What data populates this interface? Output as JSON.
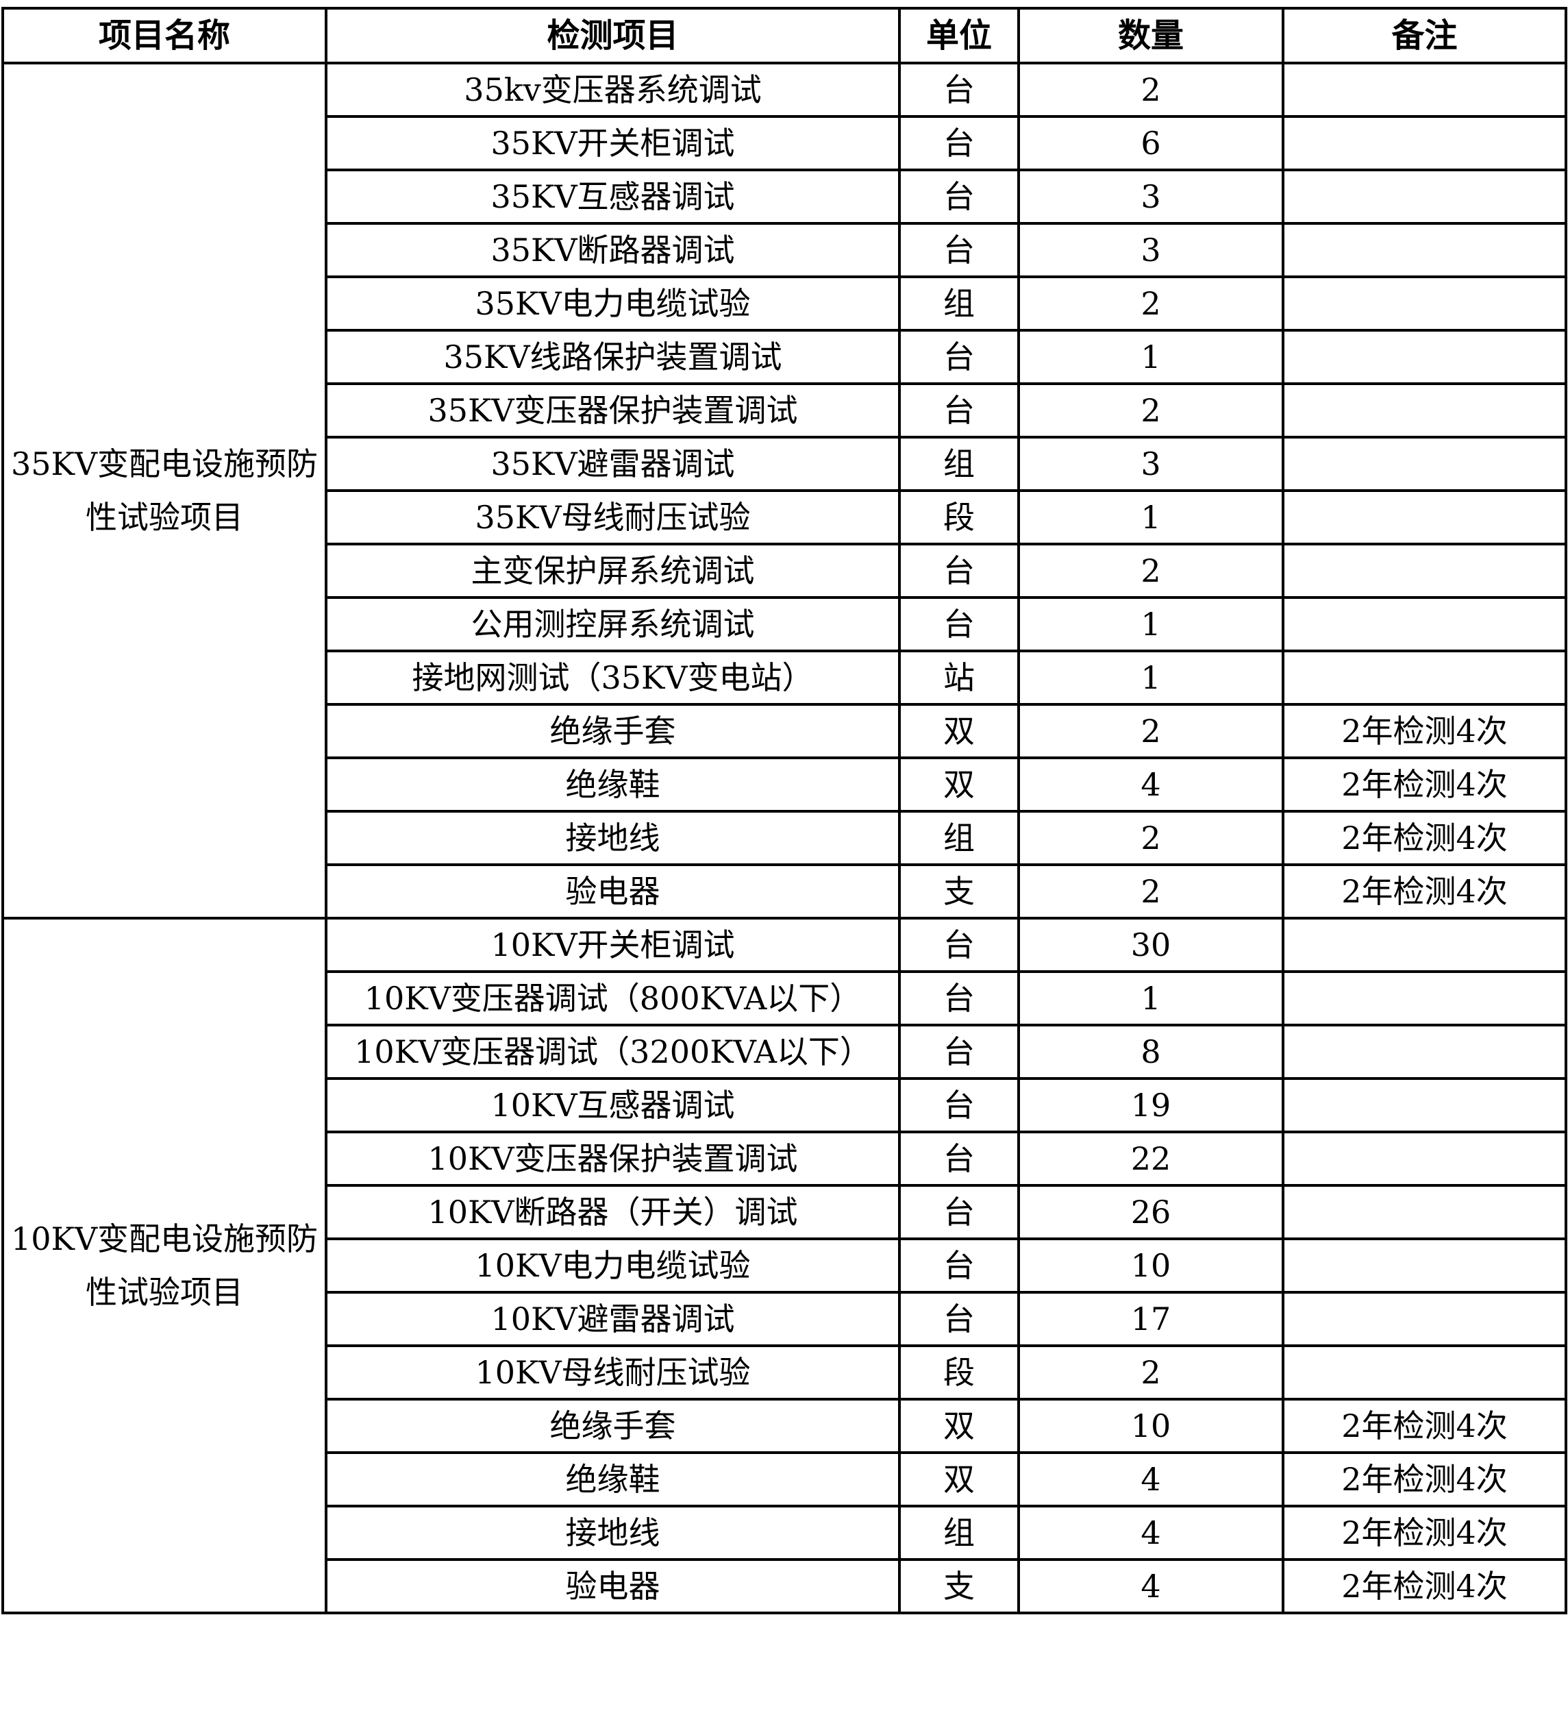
{
  "headers": [
    "项目名称",
    "检测项目",
    "单位",
    "数量",
    "备注"
  ],
  "groups": [
    {
      "name": "35KV变配电设施预防性试验项目",
      "rows": [
        {
          "item": "35kv变压器系统调试",
          "unit": "台",
          "qty": "2",
          "note": ""
        },
        {
          "item": "35KV开关柜调试",
          "unit": "台",
          "qty": "6",
          "note": ""
        },
        {
          "item": "35KV互感器调试",
          "unit": "台",
          "qty": "3",
          "note": ""
        },
        {
          "item": "35KV断路器调试",
          "unit": "台",
          "qty": "3",
          "note": ""
        },
        {
          "item": "35KV电力电缆试验",
          "unit": "组",
          "qty": "2",
          "note": ""
        },
        {
          "item": "35KV线路保护装置调试",
          "unit": "台",
          "qty": "1",
          "note": ""
        },
        {
          "item": "35KV变压器保护装置调试",
          "unit": "台",
          "qty": "2",
          "note": ""
        },
        {
          "item": "35KV避雷器调试",
          "unit": "组",
          "qty": "3",
          "note": ""
        },
        {
          "item": "35KV母线耐压试验",
          "unit": "段",
          "qty": "1",
          "note": ""
        },
        {
          "item": "主变保护屏系统调试",
          "unit": "台",
          "qty": "2",
          "note": ""
        },
        {
          "item": "公用测控屏系统调试",
          "unit": "台",
          "qty": "1",
          "note": ""
        },
        {
          "item": "接地网测试（35KV变电站）",
          "unit": "站",
          "qty": "1",
          "note": ""
        },
        {
          "item": "绝缘手套",
          "unit": "双",
          "qty": "2",
          "note": "2年检测4次"
        },
        {
          "item": "绝缘鞋",
          "unit": "双",
          "qty": "4",
          "note": "2年检测4次"
        },
        {
          "item": "接地线",
          "unit": "组",
          "qty": "2",
          "note": "2年检测4次"
        },
        {
          "item": "验电器",
          "unit": "支",
          "qty": "2",
          "note": "2年检测4次"
        }
      ]
    },
    {
      "name": "10KV变配电设施预防性试验项目",
      "rows": [
        {
          "item": "10KV开关柜调试",
          "unit": "台",
          "qty": "30",
          "note": ""
        },
        {
          "item": "10KV变压器调试（800KVA以下）",
          "unit": "台",
          "qty": "1",
          "note": ""
        },
        {
          "item": "10KV变压器调试（3200KVA以下）",
          "unit": "台",
          "qty": "8",
          "note": ""
        },
        {
          "item": "10KV互感器调试",
          "unit": "台",
          "qty": "19",
          "note": ""
        },
        {
          "item": "10KV变压器保护装置调试",
          "unit": "台",
          "qty": "22",
          "note": ""
        },
        {
          "item": "10KV断路器（开关）调试",
          "unit": "台",
          "qty": "26",
          "note": ""
        },
        {
          "item": "10KV电力电缆试验",
          "unit": "台",
          "qty": "10",
          "note": ""
        },
        {
          "item": "10KV避雷器调试",
          "unit": "台",
          "qty": "17",
          "note": ""
        },
        {
          "item": "10KV母线耐压试验",
          "unit": "段",
          "qty": "2",
          "note": ""
        },
        {
          "item": "绝缘手套",
          "unit": "双",
          "qty": "10",
          "note": "2年检测4次"
        },
        {
          "item": "绝缘鞋",
          "unit": "双",
          "qty": "4",
          "note": "2年检测4次"
        },
        {
          "item": "接地线",
          "unit": "组",
          "qty": "4",
          "note": "2年检测4次"
        },
        {
          "item": "验电器",
          "unit": "支",
          "qty": "4",
          "note": "2年检测4次"
        }
      ]
    }
  ]
}
